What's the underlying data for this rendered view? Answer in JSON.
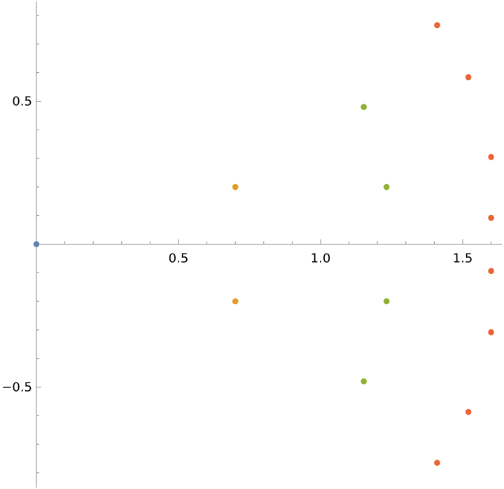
{
  "chart_data": {
    "type": "scatter",
    "xlim": [
      0,
      1.62
    ],
    "ylim": [
      -0.85,
      0.85
    ],
    "grid": false,
    "legend": "none",
    "x_ticks": [
      {
        "value": 0.5,
        "label": "0.5"
      },
      {
        "value": 1.0,
        "label": "1.0"
      },
      {
        "value": 1.5,
        "label": "1.5"
      }
    ],
    "y_ticks": [
      {
        "value": 0.5,
        "label": "0.5"
      },
      {
        "value": -0.5,
        "label": "−0.5"
      }
    ],
    "series": [
      {
        "color": "#5E81B5",
        "points": [
          [
            0.0,
            0.0
          ]
        ]
      },
      {
        "color": "#E19C24",
        "points": [
          [
            0.7,
            0.2
          ],
          [
            0.7,
            -0.2
          ]
        ]
      },
      {
        "color": "#8FB032",
        "points": [
          [
            1.152,
            0.48
          ],
          [
            1.232,
            0.2
          ],
          [
            1.232,
            -0.2
          ],
          [
            1.152,
            -0.48
          ]
        ]
      },
      {
        "color": "#EB6235",
        "points": [
          [
            1.41,
            0.766
          ],
          [
            1.52,
            0.584
          ],
          [
            1.6,
            0.305
          ],
          [
            1.6,
            0.092
          ],
          [
            1.6,
            -0.094
          ],
          [
            1.6,
            -0.308
          ],
          [
            1.52,
            -0.587
          ],
          [
            1.41,
            -0.765
          ]
        ]
      }
    ]
  }
}
